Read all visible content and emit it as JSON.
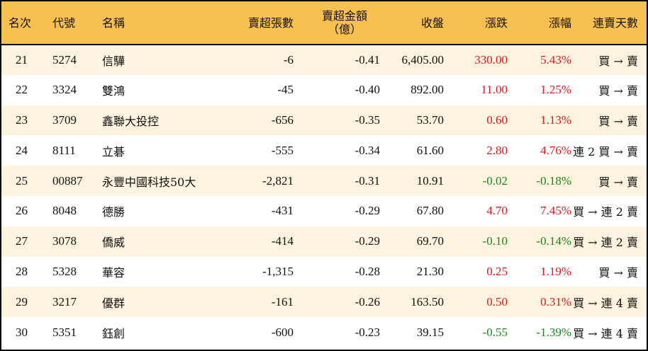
{
  "table": {
    "headers": {
      "rank": "名次",
      "code": "代號",
      "name": "名稱",
      "net_sell_lots": "賣超張數",
      "net_sell_amount_line1": "賣超金額",
      "net_sell_amount_line2": "（億）",
      "close": "收盤",
      "change": "漲跌",
      "change_pct": "漲幅",
      "consecutive_days": "連賣天數"
    },
    "colors": {
      "header_bg": "#F8C04E",
      "row_odd_bg": "#FDF3DF",
      "row_even_bg": "#FFFFFF",
      "up": "#E8141C",
      "down": "#138A1A",
      "border": "#000000"
    },
    "rows": [
      {
        "rank": "21",
        "code": "5274",
        "name": "信驊",
        "lots": "-6",
        "amount": "-0.41",
        "close": "6,405.00",
        "change": "330.00",
        "pct": "5.43%",
        "days": "買 → 賣",
        "dir": "up"
      },
      {
        "rank": "22",
        "code": "3324",
        "name": "雙鴻",
        "lots": "-45",
        "amount": "-0.40",
        "close": "892.00",
        "change": "11.00",
        "pct": "1.25%",
        "days": "買 → 賣",
        "dir": "up"
      },
      {
        "rank": "23",
        "code": "3709",
        "name": "鑫聯大投控",
        "lots": "-656",
        "amount": "-0.35",
        "close": "53.70",
        "change": "0.60",
        "pct": "1.13%",
        "days": "買 → 賣",
        "dir": "up"
      },
      {
        "rank": "24",
        "code": "8111",
        "name": "立碁",
        "lots": "-555",
        "amount": "-0.34",
        "close": "61.60",
        "change": "2.80",
        "pct": "4.76%",
        "days": "連 2 買 → 賣",
        "dir": "up"
      },
      {
        "rank": "25",
        "code": "00887",
        "name": "永豐中國科技50大",
        "lots": "-2,821",
        "amount": "-0.31",
        "close": "10.91",
        "change": "-0.02",
        "pct": "-0.18%",
        "days": "買 → 賣",
        "dir": "down"
      },
      {
        "rank": "26",
        "code": "8048",
        "name": "德勝",
        "lots": "-431",
        "amount": "-0.29",
        "close": "67.80",
        "change": "4.70",
        "pct": "7.45%",
        "days": "買 → 連 2 賣",
        "dir": "up"
      },
      {
        "rank": "27",
        "code": "3078",
        "name": "僑威",
        "lots": "-414",
        "amount": "-0.29",
        "close": "69.70",
        "change": "-0.10",
        "pct": "-0.14%",
        "days": "買 → 連 2 賣",
        "dir": "down"
      },
      {
        "rank": "28",
        "code": "5328",
        "name": "華容",
        "lots": "-1,315",
        "amount": "-0.28",
        "close": "21.30",
        "change": "0.25",
        "pct": "1.19%",
        "days": "買 → 賣",
        "dir": "up"
      },
      {
        "rank": "29",
        "code": "3217",
        "name": "優群",
        "lots": "-161",
        "amount": "-0.26",
        "close": "163.50",
        "change": "0.50",
        "pct": "0.31%",
        "days": "買 → 連 4 賣",
        "dir": "up"
      },
      {
        "rank": "30",
        "code": "5351",
        "name": "鈺創",
        "lots": "-600",
        "amount": "-0.23",
        "close": "39.15",
        "change": "-0.55",
        "pct": "-1.39%",
        "days": "買 → 連 4 賣",
        "dir": "down"
      }
    ]
  }
}
